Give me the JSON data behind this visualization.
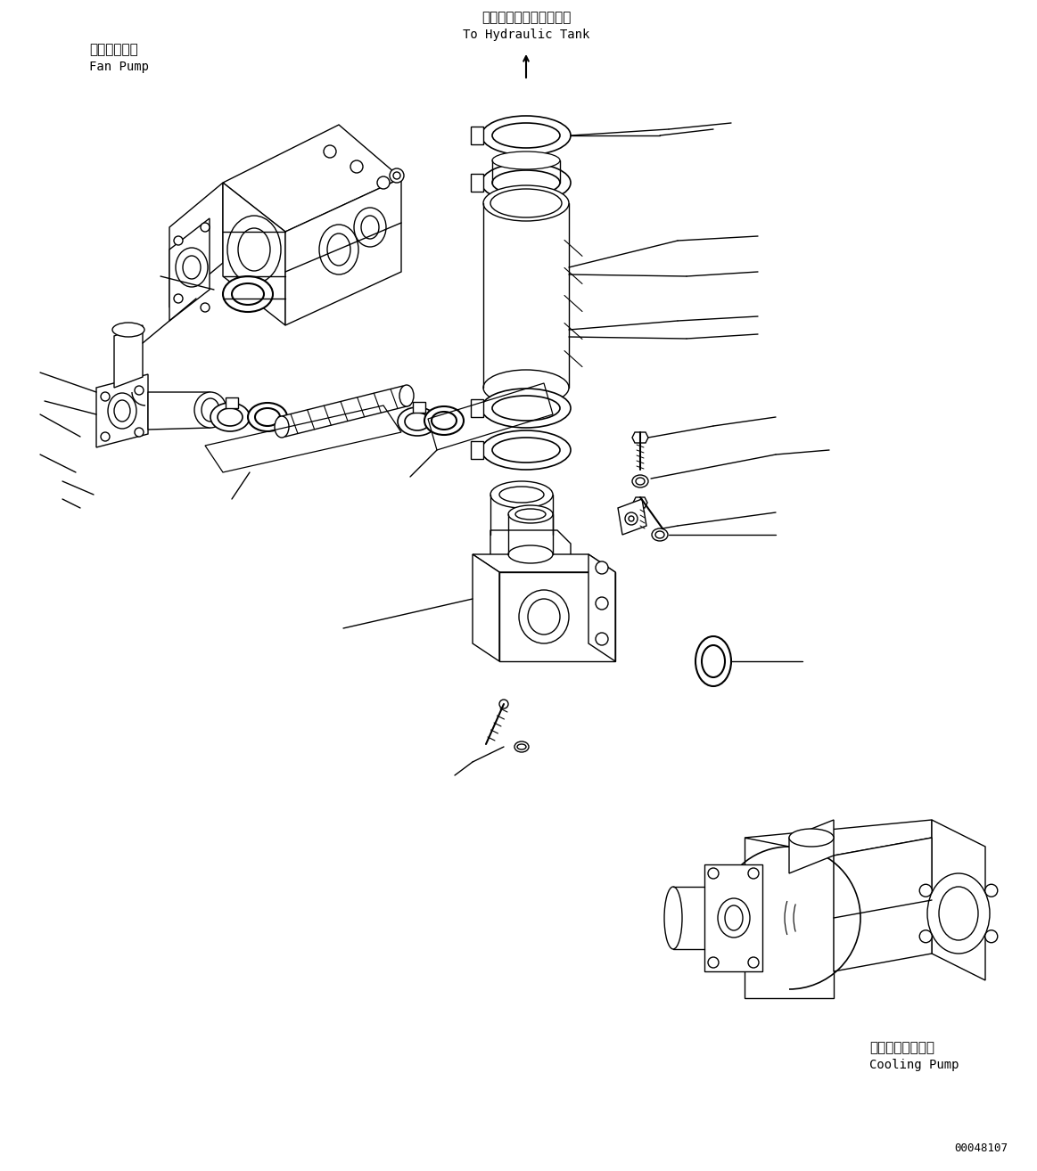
{
  "bg_color": "#ffffff",
  "line_color": "#000000",
  "labels": {
    "fan_pump_jp": "ファンポンプ",
    "fan_pump_en": "Fan Pump",
    "hydraulic_tank_jp": "ハイドロリックタンクへ",
    "hydraulic_tank_en": "To Hydraulic Tank",
    "cooling_pump_jp": "クーリングポンプ",
    "cooling_pump_en": "Cooling Pump",
    "doc_number": "00048107"
  },
  "font_size_jp": 11,
  "font_size_en": 10,
  "font_size_doc": 9
}
